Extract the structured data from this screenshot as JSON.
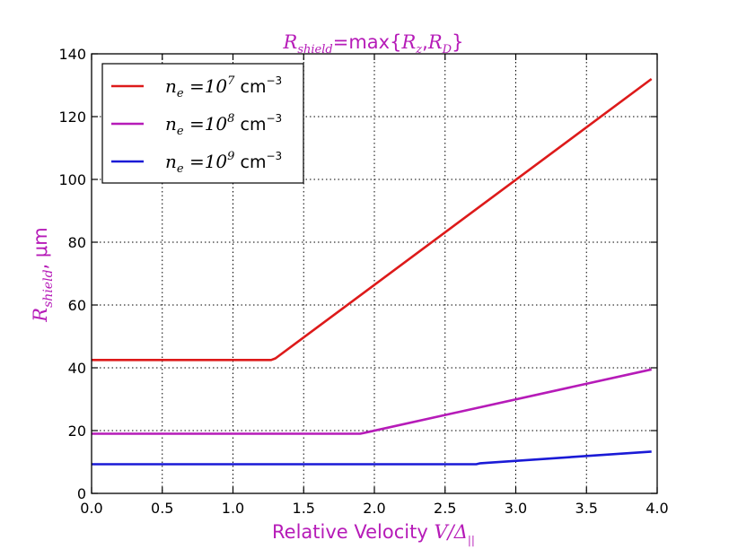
{
  "chart_data": {
    "type": "line",
    "title": {
      "var": "R",
      "sub": "shield",
      "mid": "=max{",
      "a_var": "R",
      "a_sub": "z",
      "sep": ",",
      "b_var": "R",
      "b_sub": "D",
      "close": "}"
    },
    "xlabel": {
      "text": "Relative Velocity ",
      "var": "V/Δ",
      "sub": "||"
    },
    "ylabel": {
      "var": "R",
      "sub": "shield",
      "unit": ", μm"
    },
    "xlim": [
      0.0,
      4.0
    ],
    "ylim": [
      0,
      140
    ],
    "xticks": [
      "0.0",
      "0.5",
      "1.0",
      "1.5",
      "2.0",
      "2.5",
      "3.0",
      "3.5",
      "4.0"
    ],
    "yticks": [
      "0",
      "20",
      "40",
      "60",
      "80",
      "100",
      "120",
      "140"
    ],
    "grid": true,
    "legend_position": "top-left",
    "series": [
      {
        "name": {
          "var": "n",
          "sub": "e",
          "eq": " =10",
          "exp": "7",
          "unit": "cm",
          "unit_exp": "−3"
        },
        "color": "#dd1a1a",
        "x": [
          0.0,
          1.27,
          1.3,
          3.96
        ],
        "y": [
          42.5,
          42.5,
          43.0,
          132.0
        ]
      },
      {
        "name": {
          "var": "n",
          "sub": "e",
          "eq": " =10",
          "exp": "8",
          "unit": "cm",
          "unit_exp": "−3"
        },
        "color": "#b61bb8",
        "x": [
          0.0,
          1.9,
          1.95,
          3.96
        ],
        "y": [
          19.0,
          19.0,
          19.5,
          39.5
        ]
      },
      {
        "name": {
          "var": "n",
          "sub": "e",
          "eq": " =10",
          "exp": "9",
          "unit": "cm",
          "unit_exp": "−3"
        },
        "color": "#1a1ad6",
        "x": [
          0.0,
          2.72,
          2.75,
          3.96
        ],
        "y": [
          9.3,
          9.3,
          9.6,
          13.3
        ]
      }
    ],
    "title_color": "#b61bb8",
    "label_color": "#b61bb8"
  }
}
